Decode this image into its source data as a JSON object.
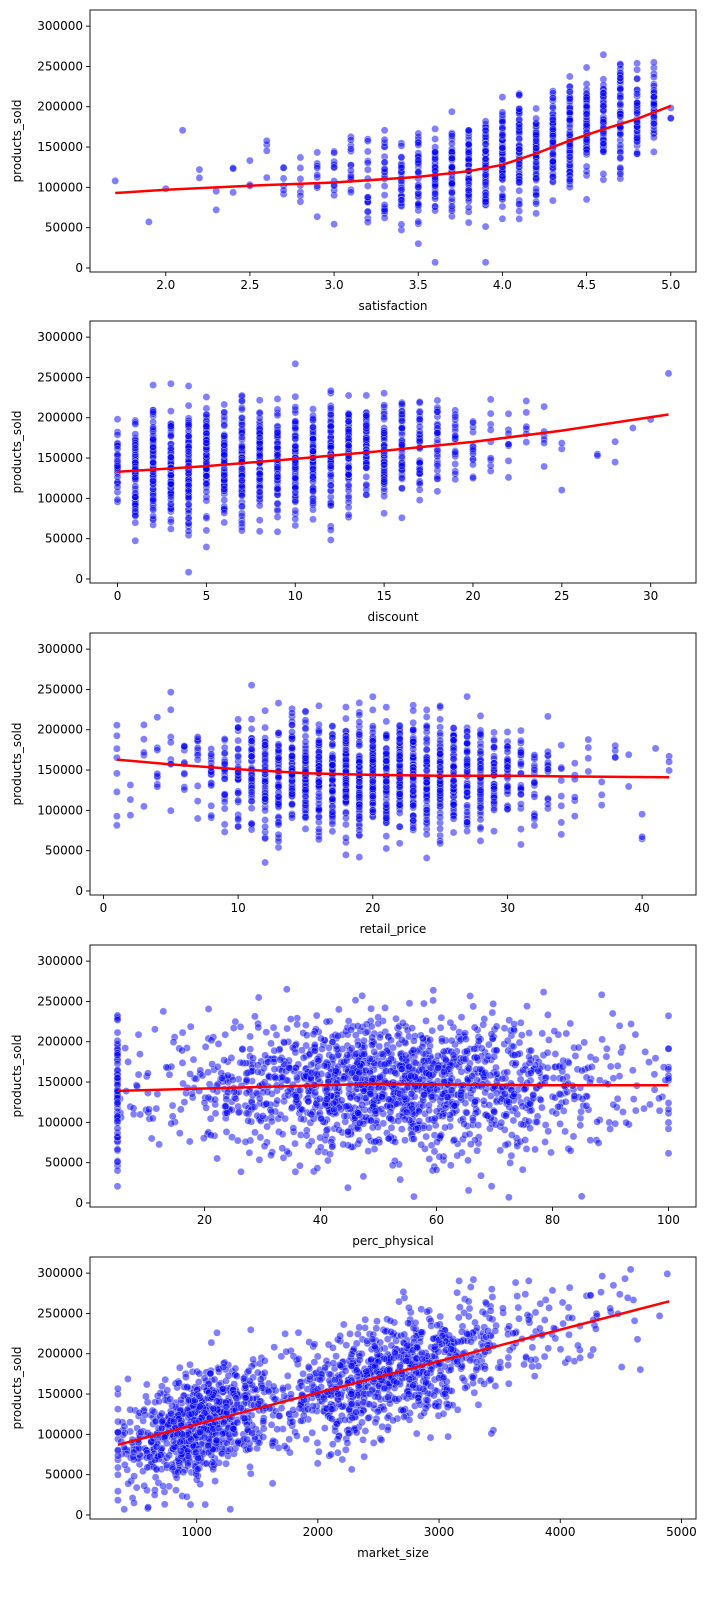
{
  "style": {
    "point_color": "#0000ff",
    "point_alpha": 0.5,
    "trend_color": "#ff0000",
    "axes_color": "#000000",
    "background": "#ffffff"
  },
  "chart_data": [
    {
      "type": "scatter",
      "title": "",
      "xlabel": "satisfaction",
      "ylabel": "products_sold",
      "xlim": [
        1.55,
        5.15
      ],
      "ylim": [
        -5000,
        320000
      ],
      "xticks": [
        "2.0",
        "2.5",
        "3.0",
        "3.5",
        "4.0",
        "4.5",
        "5.0"
      ],
      "xtick_values": [
        2.0,
        2.5,
        3.0,
        3.5,
        4.0,
        4.5,
        5.0
      ],
      "yticks": [
        "0",
        "50000",
        "100000",
        "150000",
        "200000",
        "250000",
        "300000"
      ],
      "ytick_values": [
        0,
        50000,
        100000,
        150000,
        200000,
        250000,
        300000
      ],
      "grid": false,
      "distribution": {
        "x_discrete_step": 0.1,
        "x_values": [
          1.7,
          1.9,
          2.0,
          2.1,
          2.2,
          2.3,
          2.4,
          2.5,
          2.6,
          2.7,
          2.8,
          2.9,
          3.0,
          3.1,
          3.2,
          3.3,
          3.4,
          3.5,
          3.6,
          3.7,
          3.8,
          3.9,
          4.0,
          4.1,
          4.2,
          4.3,
          4.4,
          4.5,
          4.6,
          4.7,
          4.8,
          4.9,
          5.0
        ],
        "counts": [
          1,
          1,
          1,
          1,
          2,
          2,
          3,
          3,
          4,
          6,
          7,
          9,
          12,
          14,
          18,
          24,
          30,
          38,
          44,
          50,
          56,
          62,
          66,
          68,
          70,
          70,
          68,
          64,
          58,
          52,
          46,
          38,
          3
        ],
        "y_center": [
          105000,
          58000,
          98000,
          172000,
          115000,
          90000,
          95000,
          125000,
          120000,
          110000,
          100000,
          115000,
          115000,
          115000,
          110000,
          115000,
          110000,
          115000,
          115000,
          120000,
          125000,
          130000,
          135000,
          140000,
          148000,
          155000,
          165000,
          172000,
          180000,
          187000,
          190000,
          195000,
          200000
        ],
        "y_spread": [
          2000,
          2000,
          2000,
          2000,
          60000,
          40000,
          40000,
          30000,
          45000,
          50000,
          55000,
          55000,
          60000,
          60000,
          60000,
          60000,
          60000,
          60000,
          58000,
          58000,
          58000,
          58000,
          58000,
          58000,
          58000,
          56000,
          56000,
          55000,
          55000,
          55000,
          55000,
          55000,
          25000
        ]
      },
      "trend_x": [
        1.7,
        2.0,
        2.5,
        3.0,
        3.5,
        3.8,
        4.0,
        4.2,
        4.4,
        4.6,
        4.8,
        5.0
      ],
      "trend_y": [
        93000,
        97000,
        102000,
        106000,
        113000,
        120000,
        128000,
        142000,
        158000,
        172000,
        185000,
        201000
      ]
    },
    {
      "type": "scatter",
      "title": "",
      "xlabel": "discount",
      "ylabel": "products_sold",
      "xlim": [
        -1.55,
        32.55
      ],
      "ylim": [
        -5000,
        320000
      ],
      "xticks": [
        "0",
        "5",
        "10",
        "15",
        "20",
        "25",
        "30"
      ],
      "xtick_values": [
        0,
        5,
        10,
        15,
        20,
        25,
        30
      ],
      "yticks": [
        "0",
        "50000",
        "100000",
        "150000",
        "200000",
        "250000",
        "300000"
      ],
      "ytick_values": [
        0,
        50000,
        100000,
        150000,
        200000,
        250000,
        300000
      ],
      "grid": false,
      "distribution": {
        "x_discrete_step": 1,
        "x_values": [
          0,
          1,
          2,
          3,
          4,
          5,
          6,
          7,
          8,
          9,
          10,
          11,
          12,
          13,
          14,
          15,
          16,
          17,
          18,
          19,
          20,
          21,
          22,
          23,
          24,
          25,
          27,
          28,
          29,
          30,
          31
        ],
        "counts": [
          30,
          60,
          80,
          80,
          85,
          85,
          85,
          85,
          85,
          80,
          80,
          75,
          72,
          70,
          62,
          55,
          45,
          38,
          28,
          20,
          14,
          9,
          8,
          6,
          6,
          3,
          2,
          2,
          1,
          1,
          1
        ],
        "y_center": [
          140000,
          138000,
          138000,
          140000,
          140000,
          142000,
          142000,
          144000,
          146000,
          148000,
          150000,
          152000,
          155000,
          157000,
          160000,
          162000,
          164000,
          166000,
          170000,
          172000,
          175000,
          178000,
          182000,
          182000,
          190000,
          160000,
          200000,
          145000,
          185000,
          200000,
          255000
        ],
        "y_spread": [
          55000,
          60000,
          62000,
          62000,
          62000,
          62000,
          62000,
          62000,
          62000,
          62000,
          62000,
          62000,
          62000,
          62000,
          62000,
          60000,
          60000,
          58000,
          58000,
          56000,
          55000,
          50000,
          50000,
          45000,
          45000,
          40000,
          60000,
          80000,
          20000,
          2000,
          2000
        ]
      },
      "trend_x": [
        0,
        5,
        10,
        15,
        20,
        25,
        31
      ],
      "trend_y": [
        133000,
        140000,
        149000,
        159000,
        170000,
        184000,
        204000
      ]
    },
    {
      "type": "scatter",
      "title": "",
      "xlabel": "retail_price",
      "ylabel": "products_sold",
      "xlim": [
        -1.0,
        44.0
      ],
      "ylim": [
        -5000,
        320000
      ],
      "xticks": [
        "0",
        "10",
        "20",
        "30",
        "40"
      ],
      "xtick_values": [
        0,
        10,
        20,
        30,
        40
      ],
      "yticks": [
        "0",
        "50000",
        "100000",
        "150000",
        "200000",
        "250000",
        "300000"
      ],
      "ytick_values": [
        0,
        50000,
        100000,
        150000,
        200000,
        250000,
        300000
      ],
      "grid": false,
      "distribution": {
        "x_discrete_step": 1,
        "x_values": [
          1,
          2,
          3,
          4,
          5,
          6,
          7,
          8,
          9,
          10,
          11,
          12,
          13,
          14,
          15,
          16,
          17,
          18,
          19,
          20,
          21,
          22,
          23,
          24,
          25,
          26,
          27,
          28,
          29,
          30,
          31,
          32,
          33,
          34,
          35,
          36,
          37,
          38,
          39,
          40,
          41,
          42
        ],
        "counts": [
          8,
          3,
          5,
          8,
          8,
          10,
          12,
          18,
          25,
          32,
          42,
          50,
          58,
          64,
          68,
          72,
          75,
          78,
          78,
          78,
          76,
          74,
          72,
          70,
          66,
          62,
          56,
          48,
          40,
          34,
          26,
          18,
          14,
          8,
          6,
          4,
          3,
          4,
          2,
          3,
          1,
          3
        ],
        "y_center": [
          160000,
          120000,
          175000,
          150000,
          170000,
          150000,
          160000,
          150000,
          148000,
          148000,
          146000,
          145000,
          145000,
          144000,
          144000,
          144000,
          143000,
          143000,
          143000,
          143000,
          143000,
          143000,
          143000,
          143000,
          143000,
          143000,
          143000,
          142000,
          142000,
          142000,
          142000,
          142000,
          142000,
          135000,
          135000,
          150000,
          130000,
          160000,
          150000,
          100000,
          160000,
          160000
        ],
        "y_spread": [
          60000,
          40000,
          60000,
          55000,
          70000,
          55000,
          55000,
          60000,
          60000,
          60000,
          62000,
          62000,
          62000,
          62000,
          62000,
          62000,
          62000,
          62000,
          62000,
          62000,
          62000,
          62000,
          62000,
          62000,
          62000,
          62000,
          62000,
          62000,
          62000,
          60000,
          58000,
          55000,
          55000,
          45000,
          40000,
          50000,
          35000,
          50000,
          60000,
          50000,
          30000,
          40000
        ]
      },
      "trend_x": [
        1,
        5,
        10,
        15,
        20,
        25,
        30,
        35,
        42
      ],
      "trend_y": [
        163000,
        157000,
        151000,
        146000,
        144000,
        143000,
        143000,
        142000,
        141000
      ]
    },
    {
      "type": "scatter",
      "title": "",
      "xlabel": "perc_physical",
      "ylabel": "products_sold",
      "xlim": [
        0.25,
        104.75
      ],
      "ylim": [
        -5000,
        320000
      ],
      "xticks": [
        "20",
        "40",
        "60",
        "80",
        "100"
      ],
      "xtick_values": [
        20,
        40,
        60,
        80,
        100
      ],
      "yticks": [
        "0",
        "50000",
        "100000",
        "150000",
        "200000",
        "250000",
        "300000"
      ],
      "ytick_values": [
        0,
        50000,
        100000,
        150000,
        200000,
        250000,
        300000
      ],
      "grid": false,
      "distribution": {
        "continuous": true,
        "x_range": [
          5,
          100
        ],
        "x_mean": 52,
        "x_sd": 20,
        "edge_cluster_x": 5,
        "edge_cluster_count": 45,
        "count": 1700,
        "y_center": 145000,
        "y_spread": 50000
      },
      "trend_x": [
        5,
        20,
        40,
        50,
        60,
        80,
        100
      ],
      "trend_y": [
        139000,
        142000,
        146000,
        148000,
        147000,
        146000,
        146000
      ]
    },
    {
      "type": "scatter",
      "title": "",
      "xlabel": "market_size",
      "ylabel": "products_sold",
      "xlim": [
        120,
        5120
      ],
      "ylim": [
        -5000,
        320000
      ],
      "xticks": [
        "1000",
        "2000",
        "3000",
        "4000",
        "5000"
      ],
      "xtick_values": [
        1000,
        2000,
        3000,
        4000,
        5000
      ],
      "yticks": [
        "0",
        "50000",
        "100000",
        "150000",
        "200000",
        "250000",
        "300000"
      ],
      "ytick_values": [
        0,
        50000,
        100000,
        150000,
        200000,
        250000,
        300000
      ],
      "grid": false,
      "distribution": {
        "continuous": true,
        "clusters": [
          {
            "x_mean": 1000,
            "x_sd": 300,
            "count": 800
          },
          {
            "x_mean": 2600,
            "x_sd": 550,
            "count": 900
          },
          {
            "x_mean": 4100,
            "x_sd": 350,
            "count": 60
          }
        ],
        "x_range": [
          350,
          4900
        ],
        "y_slope": 39.5,
        "y_intercept": 72000,
        "y_spread": 33000
      },
      "trend_x": [
        350,
        4900
      ],
      "trend_y": [
        87000,
        265000
      ]
    }
  ]
}
